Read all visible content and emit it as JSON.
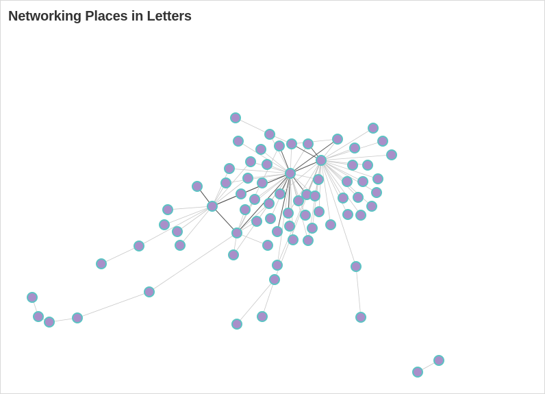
{
  "title": "Networking Places in Letters",
  "style": {
    "node_fill": "#a98fc9",
    "node_stroke": "#5cc3c3",
    "edge_light": "#c8c8c8",
    "edge_dark": "#555555"
  },
  "nodes_count": 72
}
